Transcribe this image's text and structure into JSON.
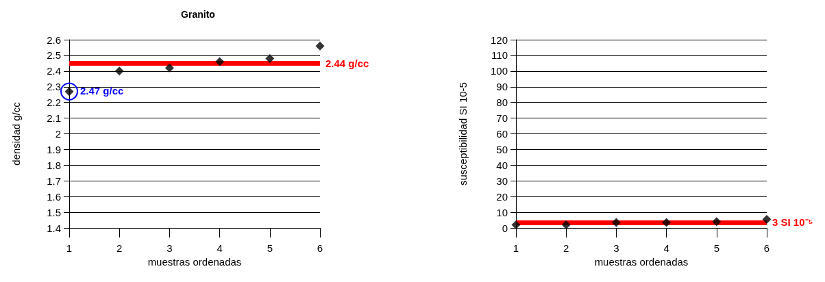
{
  "chart_data": [
    {
      "type": "scatter",
      "title": "Granito",
      "xlabel": "muestras ordenadas",
      "ylabel": "densidad g/cc",
      "x": [
        1,
        2,
        3,
        4,
        5,
        6
      ],
      "series": [
        {
          "color": "#000000",
          "values": [
            2.27,
            2.4,
            2.42,
            2.46,
            2.48,
            2.56
          ]
        }
      ],
      "xlim": [
        1,
        6
      ],
      "xticks": [
        1,
        2,
        3,
        4,
        5,
        6
      ],
      "ylim": [
        1.4,
        2.6
      ],
      "yticks": [
        1.4,
        1.5,
        1.6,
        1.7,
        1.8,
        1.9,
        2,
        2.1,
        2.2,
        2.3,
        2.4,
        2.5,
        2.6
      ],
      "ref_lines": [
        {
          "axis": "y",
          "value": 2.45,
          "label": "2.44 g/cc",
          "color": "#ff0000"
        }
      ],
      "annotations": [
        {
          "text": "2.47 g/cc",
          "x": 1,
          "y": 2.27
        }
      ],
      "grid": "y",
      "marker": "diamond"
    },
    {
      "type": "scatter",
      "xlabel": "muestras ordenadas",
      "ylabel": "susceptibilidad SI 10-5",
      "x": [
        1,
        2,
        3,
        4,
        5,
        6
      ],
      "series": [
        {
          "color": "#000000",
          "values": [
            2,
            2,
            3.5,
            3.5,
            4,
            5.5
          ]
        }
      ],
      "xlim": [
        1,
        6
      ],
      "xticks": [
        1,
        2,
        3,
        4,
        5,
        6
      ],
      "ylim": [
        0,
        120
      ],
      "yticks": [
        0,
        10,
        20,
        30,
        40,
        50,
        60,
        70,
        80,
        90,
        100,
        110,
        120
      ],
      "ref_lines": [
        {
          "axis": "y",
          "value": 3.5,
          "label": "3 SI 10⁻⁵",
          "color": "#ff0000"
        }
      ],
      "grid": "y",
      "marker": "diamond"
    }
  ]
}
